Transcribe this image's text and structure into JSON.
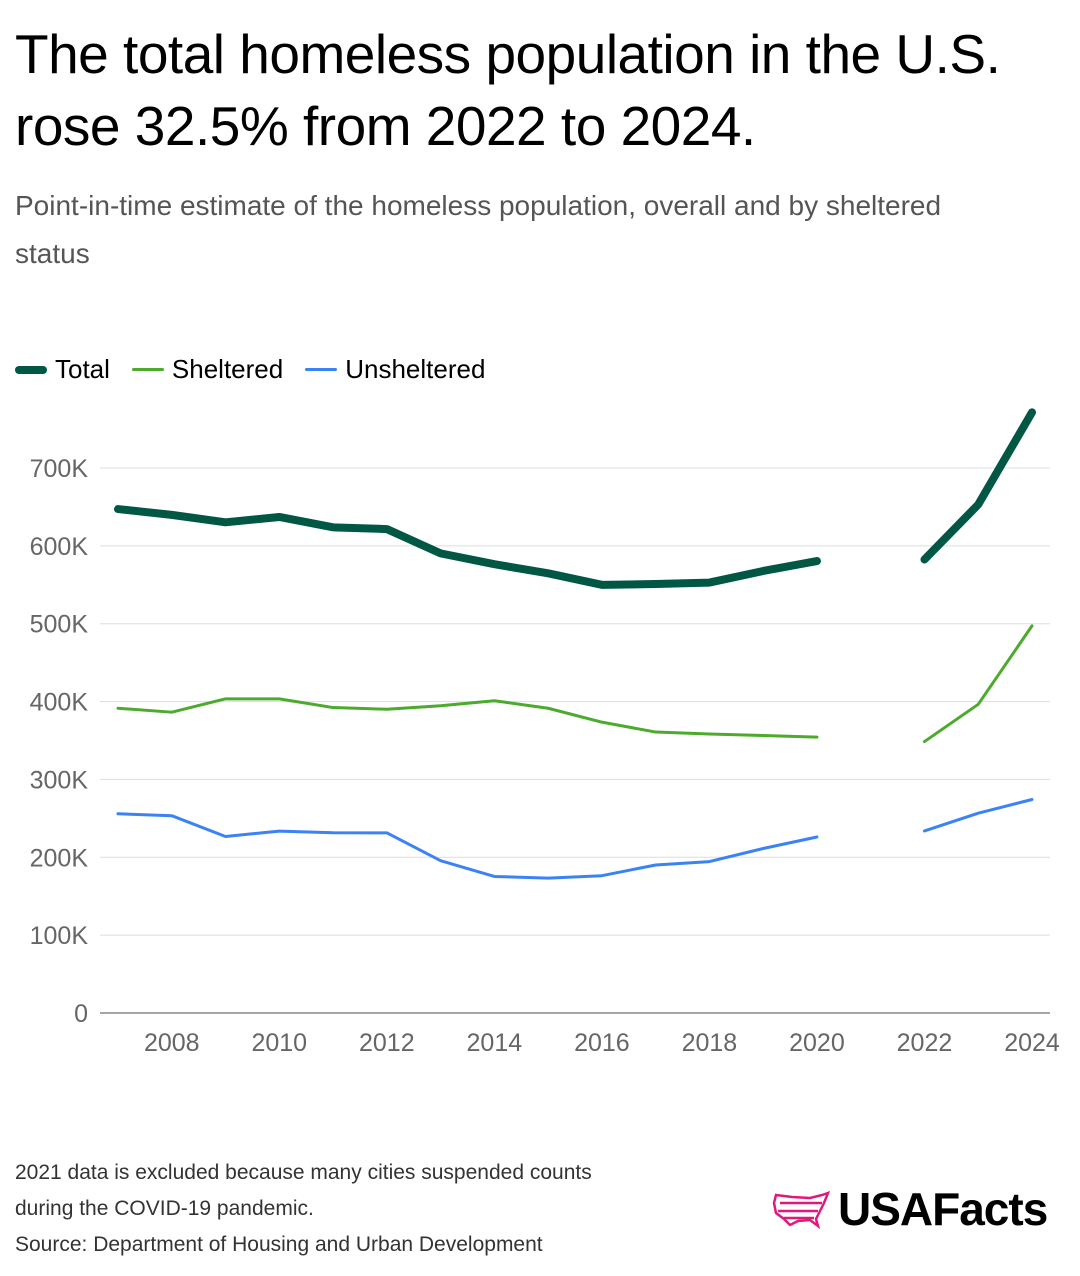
{
  "title": "The total homeless population in the U.S. rose 32.5% from 2022 to 2024.",
  "subtitle": "Point-in-time estimate of the homeless population, overall and by sheltered status",
  "chart_data": {
    "type": "line",
    "title": "The total homeless population in the U.S. rose 32.5% from 2022 to 2024.",
    "xlabel": "",
    "ylabel": "",
    "xlim": [
      2007,
      2024
    ],
    "ylim": [
      0,
      780000
    ],
    "x_ticks": [
      2008,
      2010,
      2012,
      2014,
      2016,
      2018,
      2020,
      2022,
      2024
    ],
    "y_ticks": [
      0,
      100000,
      200000,
      300000,
      400000,
      500000,
      600000,
      700000
    ],
    "y_tick_labels": [
      "0",
      "100K",
      "200K",
      "300K",
      "400K",
      "500K",
      "600K",
      "700K"
    ],
    "grid": "horizontal",
    "legend_position": "top-left",
    "x": [
      2007,
      2008,
      2009,
      2010,
      2011,
      2012,
      2013,
      2014,
      2015,
      2016,
      2017,
      2018,
      2019,
      2020,
      2021,
      2022,
      2023,
      2024
    ],
    "series": [
      {
        "name": "Total",
        "color": "#005743",
        "values": [
          647258,
          639784,
          630227,
          637077,
          623788,
          621553,
          590364,
          576450,
          564708,
          549928,
          550996,
          552830,
          567715,
          580466,
          null,
          582462,
          653104,
          771480
        ]
      },
      {
        "name": "Sheltered",
        "color": "#4caa2c",
        "values": [
          391401,
          386361,
          403543,
          403437,
          392316,
          390155,
          394698,
          401051,
          391440,
          373571,
          360867,
          358363,
          356422,
          354386,
          null,
          348630,
          396494,
          497256
        ]
      },
      {
        "name": "Unsheltered",
        "color": "#3b82f6",
        "values": [
          255857,
          253423,
          226684,
          233640,
          231472,
          231398,
          195666,
          175399,
          173268,
          176357,
          190129,
          194467,
          211293,
          226080,
          null,
          233832,
          256610,
          274224
        ]
      }
    ]
  },
  "notes": {
    "line1": "2021 data is excluded because many cities suspended counts",
    "line2": "during the COVID-19 pandemic.",
    "source": "Source: Department of Housing and Urban Development"
  },
  "logo": {
    "text": "USAFacts",
    "color": "#e0197d"
  }
}
